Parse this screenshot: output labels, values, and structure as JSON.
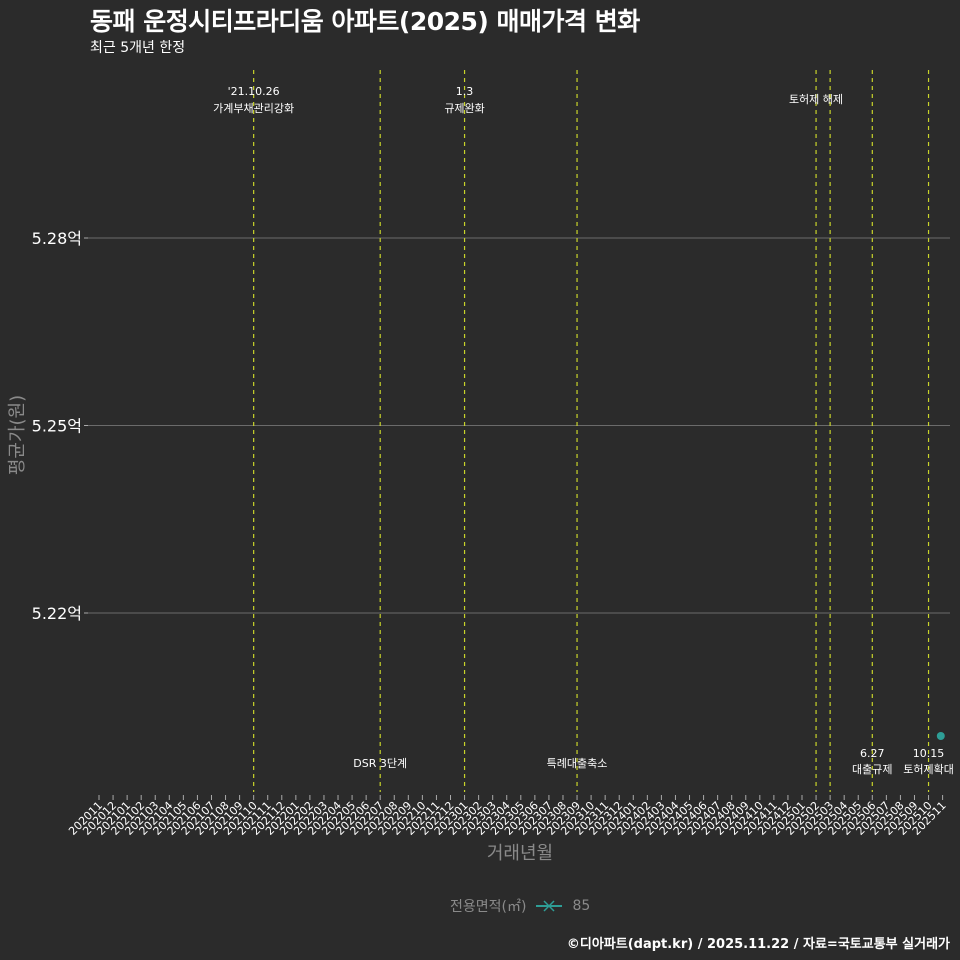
{
  "header": {
    "title": "동패 운정시티프라디움 아파트(2025) 매매가격 변화",
    "subtitle": "최근 5개년 한정"
  },
  "axes": {
    "ylabel": "평균가(원)",
    "xlabel": "거래년월"
  },
  "legend": {
    "title": "전용면적(㎡)",
    "items": [
      {
        "label": "85",
        "color": "#2e9e96"
      }
    ]
  },
  "caption": "©디아파트(dapt.kr) / 2025.11.22 / 자료=국토교통부 실거래가",
  "colors": {
    "background": "#2b2b2b",
    "gridline": "#6b6b6b",
    "event_line": "#c8d42a",
    "series": "#2e9e96"
  },
  "chart_data": {
    "type": "line",
    "title": "동패 운정시티프라디움 아파트(2025) 매매가격 변화",
    "subtitle": "최근 5개년 한정",
    "xlabel": "거래년월",
    "ylabel": "평균가(원)",
    "categories": [
      "202011",
      "202012",
      "202101",
      "202102",
      "202103",
      "202104",
      "202105",
      "202106",
      "202107",
      "202108",
      "202109",
      "202110",
      "202111",
      "202112",
      "202201",
      "202202",
      "202203",
      "202204",
      "202205",
      "202206",
      "202207",
      "202208",
      "202209",
      "202210",
      "202211",
      "202212",
      "202301",
      "202302",
      "202303",
      "202304",
      "202305",
      "202306",
      "202307",
      "202308",
      "202309",
      "202310",
      "202311",
      "202312",
      "202401",
      "202402",
      "202403",
      "202404",
      "202405",
      "202406",
      "202407",
      "202408",
      "202409",
      "202410",
      "202411",
      "202412",
      "202501",
      "202502",
      "202503",
      "202504",
      "202505",
      "202506",
      "202507",
      "202508",
      "202509",
      "202510",
      "202511"
    ],
    "yticks": [
      "5.22억",
      "5.25억",
      "5.28억"
    ],
    "ytick_values": [
      5.22,
      5.25,
      5.28
    ],
    "ylim": [
      5.199,
      5.3
    ],
    "grid": true,
    "legend_position": "bottom",
    "series": [
      {
        "name": "85",
        "points": [
          {
            "x": "202511",
            "y": 5.2
          }
        ]
      }
    ],
    "events": [
      {
        "x": "202110",
        "label_top": "'21.10.26",
        "label_bottom": "가계부채관리강화",
        "position": "top"
      },
      {
        "x": "202207",
        "label_top": "",
        "label_bottom": "DSR 3단계",
        "position": "bottom"
      },
      {
        "x": "202301",
        "label_top": "1.3",
        "label_bottom": "규제완화",
        "position": "top"
      },
      {
        "x": "202309",
        "label_top": "",
        "label_bottom": "특례대출축소",
        "position": "bottom"
      },
      {
        "x": "202502",
        "label_top": "",
        "label_bottom": "토허제 해제",
        "position": "top"
      },
      {
        "x": "202503",
        "label_top": "",
        "label_bottom": "",
        "position": "top"
      },
      {
        "x": "202506",
        "label_top": "6.27",
        "label_bottom": "대출규제",
        "position": "bottom"
      },
      {
        "x": "202510",
        "label_top": "10.15",
        "label_bottom": "토허제확대",
        "position": "bottom"
      }
    ]
  }
}
